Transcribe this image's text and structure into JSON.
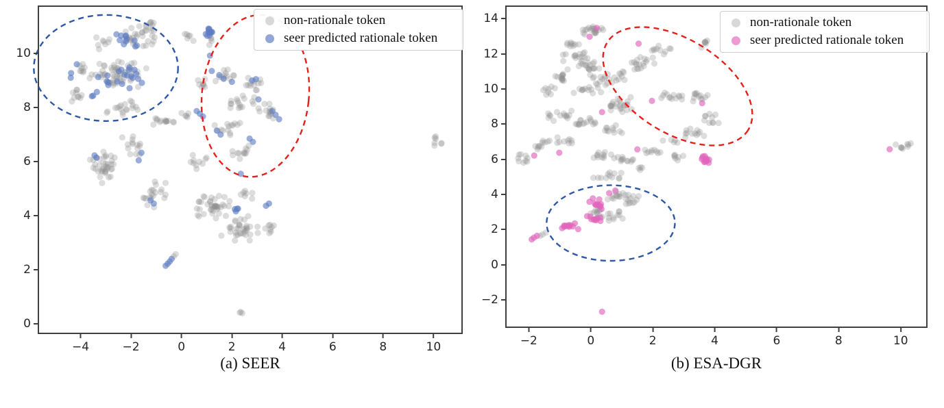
{
  "figure_colors": {
    "spine": "#3f3f3f",
    "tick_label": "#262626",
    "background": "#ffffff"
  },
  "chart_data": [
    {
      "type": "scatter",
      "caption": "(a) SEER",
      "xlim": [
        -5.7,
        11.05
      ],
      "ylim": [
        -0.27,
        11.77
      ],
      "xticks": [
        -4,
        -2,
        0,
        2,
        4,
        6,
        8,
        10
      ],
      "yticks": [
        0,
        2,
        4,
        6,
        8,
        10
      ],
      "grid": false,
      "legend_position": "upper right",
      "series": [
        {
          "name": "non-rationale token",
          "color": "#909090",
          "opacity": 0.3,
          "legend_color": "#d8d8d8"
        },
        {
          "name": "seer predicted rationale token",
          "color": "#5e7dc2",
          "opacity": 0.62,
          "legend_color": "#93a7d6"
        }
      ],
      "ellipses": [
        {
          "name": "blue-cluster-ellipse",
          "cx": -3.05,
          "cy": 9.51,
          "rx": 2.86,
          "ry": 1.96,
          "angle": 0,
          "color": "#2d57a8"
        },
        {
          "name": "red-cluster-ellipse",
          "cx": 2.88,
          "cy": 8.48,
          "rx": 2.12,
          "ry": 3.0,
          "angle": 6,
          "color": "#e3211a"
        }
      ],
      "clusters_format": [
        "series",
        "cx",
        "cy",
        "sx",
        "sy",
        "n"
      ],
      "clusters": [
        [
          0,
          -1.85,
          10.7,
          0.85,
          0.45,
          28
        ],
        [
          0,
          -1.3,
          11.05,
          0.25,
          0.2,
          8
        ],
        [
          0,
          -3.2,
          10.45,
          0.45,
          0.3,
          8
        ],
        [
          0,
          -2.6,
          9.3,
          1.25,
          0.55,
          55
        ],
        [
          0,
          -3.95,
          9.45,
          0.3,
          0.25,
          8
        ],
        [
          0,
          -4.3,
          8.5,
          0.35,
          0.35,
          10
        ],
        [
          0,
          -2.4,
          8.0,
          0.95,
          0.35,
          18
        ],
        [
          0,
          -0.7,
          7.5,
          0.55,
          0.25,
          14
        ],
        [
          0,
          0.1,
          7.75,
          0.2,
          0.15,
          5
        ],
        [
          0,
          -2.0,
          6.7,
          0.5,
          0.55,
          14
        ],
        [
          0,
          -3.15,
          5.9,
          0.55,
          0.8,
          38
        ],
        [
          0,
          -1.15,
          4.85,
          0.6,
          0.6,
          20
        ],
        [
          0,
          0.55,
          6.0,
          0.5,
          0.4,
          10
        ],
        [
          0,
          1.2,
          4.4,
          0.75,
          0.6,
          40
        ],
        [
          0,
          2.3,
          3.6,
          0.8,
          0.5,
          35
        ],
        [
          0,
          3.5,
          3.6,
          0.3,
          0.25,
          8
        ],
        [
          0,
          2.55,
          4.85,
          0.3,
          0.2,
          7
        ],
        [
          0,
          1.7,
          9.25,
          0.45,
          0.35,
          12
        ],
        [
          0,
          2.85,
          8.9,
          0.45,
          0.3,
          12
        ],
        [
          0,
          2.3,
          8.3,
          0.7,
          0.4,
          16
        ],
        [
          0,
          3.3,
          7.9,
          0.45,
          0.4,
          14
        ],
        [
          0,
          1.8,
          7.3,
          0.6,
          0.4,
          14
        ],
        [
          0,
          2.4,
          6.3,
          0.5,
          0.4,
          12
        ],
        [
          0,
          1.15,
          10.6,
          0.2,
          0.3,
          5
        ],
        [
          0,
          0.25,
          10.7,
          0.3,
          0.35,
          6
        ],
        [
          0,
          10.05,
          6.85,
          0.25,
          0.22,
          7
        ],
        [
          0,
          0.8,
          8.9,
          0.3,
          0.4,
          8
        ],
        [
          1,
          -2.3,
          10.55,
          0.75,
          0.4,
          11
        ],
        [
          1,
          -2.5,
          9.2,
          1.05,
          0.5,
          20
        ],
        [
          1,
          -4.3,
          9.4,
          0.25,
          0.3,
          3
        ],
        [
          1,
          -3.6,
          8.55,
          0.3,
          0.25,
          3
        ],
        [
          1,
          1.05,
          10.8,
          0.22,
          0.22,
          12
        ],
        [
          1,
          2.1,
          4.3,
          0.22,
          0.18,
          4
        ]
      ],
      "points_format": [
        "series",
        "x",
        "y"
      ],
      "points": [
        [
          0,
          2.3,
          0.5
        ],
        [
          0,
          2.36,
          0.45
        ],
        [
          0,
          2.26,
          0.47
        ],
        [
          0,
          -0.36,
          2.55
        ],
        [
          0,
          -0.28,
          2.63
        ],
        [
          1,
          -0.68,
          2.2
        ],
        [
          1,
          -0.6,
          2.28
        ],
        [
          1,
          -0.52,
          2.36
        ],
        [
          1,
          -0.44,
          2.46
        ],
        [
          1,
          1.08,
          9.97
        ],
        [
          1,
          1.15,
          9.4
        ],
        [
          1,
          -1.64,
          6.38
        ],
        [
          1,
          -1.75,
          6.1
        ],
        [
          1,
          -3.5,
          6.28
        ],
        [
          1,
          -3.42,
          6.2
        ],
        [
          1,
          -1.28,
          4.62
        ],
        [
          1,
          -1.15,
          4.5
        ],
        [
          1,
          3.3,
          4.42
        ],
        [
          1,
          3.42,
          4.5
        ],
        [
          1,
          1.45,
          9.25
        ],
        [
          1,
          1.62,
          9.12
        ],
        [
          1,
          1.95,
          9.0
        ],
        [
          1,
          2.75,
          9.05
        ],
        [
          1,
          2.9,
          9.1
        ],
        [
          1,
          3.0,
          8.35
        ],
        [
          1,
          3.55,
          7.92
        ],
        [
          1,
          3.68,
          7.78
        ],
        [
          1,
          3.82,
          7.62
        ],
        [
          1,
          0.55,
          7.92
        ],
        [
          1,
          0.68,
          7.82
        ],
        [
          1,
          0.8,
          7.72
        ],
        [
          1,
          1.35,
          7.2
        ],
        [
          1,
          1.5,
          7.05
        ],
        [
          1,
          2.65,
          6.9
        ],
        [
          1,
          2.78,
          6.78
        ],
        [
          1,
          2.3,
          5.6
        ]
      ]
    },
    {
      "type": "scatter",
      "caption": "(b) ESA-DGR",
      "xlim": [
        -2.76,
        10.78
      ],
      "ylim": [
        -3.44,
        14.75
      ],
      "xticks": [
        -2,
        0,
        2,
        4,
        6,
        8,
        10
      ],
      "yticks": [
        -2,
        0,
        2,
        4,
        6,
        8,
        10,
        12,
        14
      ],
      "grid": false,
      "legend_position": "upper right",
      "series": [
        {
          "name": "non-rationale token",
          "color": "#909090",
          "opacity": 0.3,
          "legend_color": "#d8d8d8"
        },
        {
          "name": "seer predicted rationale token",
          "color": "#e066bb",
          "opacity": 0.65,
          "legend_color": "#ee9ad3"
        }
      ],
      "ellipses": [
        {
          "name": "red-cluster-ellipse",
          "cx": 2.76,
          "cy": 10.23,
          "rx": 2.68,
          "ry": 2.66,
          "angle": 32,
          "color": "#e3211a"
        },
        {
          "name": "blue-cluster-ellipse",
          "cx": 0.6,
          "cy": 2.45,
          "rx": 2.07,
          "ry": 2.15,
          "angle": 0,
          "color": "#2d57a8"
        }
      ],
      "clusters_format": [
        "series",
        "cx",
        "cy",
        "sx",
        "sy",
        "n"
      ],
      "clusters": [
        [
          0,
          0.0,
          13.4,
          0.55,
          0.35,
          20
        ],
        [
          0,
          -0.6,
          12.7,
          0.3,
          0.25,
          9
        ],
        [
          0,
          2.2,
          12.3,
          0.5,
          0.3,
          10
        ],
        [
          0,
          3.6,
          12.65,
          0.2,
          0.3,
          7
        ],
        [
          0,
          -0.55,
          11.95,
          0.5,
          0.3,
          14
        ],
        [
          0,
          -0.1,
          11.4,
          0.55,
          0.4,
          18
        ],
        [
          0,
          -1.05,
          10.8,
          0.35,
          0.5,
          14
        ],
        [
          0,
          0.35,
          10.65,
          0.5,
          0.4,
          16
        ],
        [
          0,
          -0.2,
          10.05,
          0.55,
          0.3,
          12
        ],
        [
          0,
          1.6,
          11.5,
          0.55,
          0.5,
          18
        ],
        [
          0,
          0.95,
          10.8,
          0.3,
          0.35,
          8
        ],
        [
          0,
          0.85,
          9.2,
          0.5,
          0.5,
          24
        ],
        [
          0,
          2.6,
          9.6,
          0.5,
          0.35,
          13
        ],
        [
          0,
          3.5,
          9.65,
          0.4,
          0.3,
          12
        ],
        [
          0,
          3.85,
          8.4,
          0.25,
          0.45,
          10
        ],
        [
          0,
          3.3,
          7.6,
          0.4,
          0.3,
          12
        ],
        [
          0,
          2.5,
          7.15,
          0.3,
          0.2,
          5
        ],
        [
          0,
          -1.35,
          9.95,
          0.3,
          0.3,
          8
        ],
        [
          0,
          -1.1,
          8.5,
          0.5,
          0.35,
          14
        ],
        [
          0,
          -0.25,
          8.2,
          0.55,
          0.4,
          16
        ],
        [
          0,
          0.55,
          7.8,
          0.45,
          0.3,
          11
        ],
        [
          0,
          -1.7,
          6.9,
          0.4,
          0.3,
          11
        ],
        [
          0,
          -2.3,
          6.15,
          0.3,
          0.3,
          9
        ],
        [
          0,
          -0.9,
          7.1,
          0.4,
          0.25,
          9
        ],
        [
          0,
          0.2,
          6.3,
          0.5,
          0.3,
          11
        ],
        [
          0,
          1.05,
          6.05,
          0.5,
          0.3,
          12
        ],
        [
          0,
          1.95,
          6.5,
          0.4,
          0.25,
          9
        ],
        [
          0,
          2.7,
          6.2,
          0.35,
          0.25,
          7
        ],
        [
          0,
          0.5,
          5.1,
          0.6,
          0.35,
          12
        ],
        [
          0,
          0.85,
          4.0,
          0.4,
          0.3,
          14
        ],
        [
          0,
          1.3,
          3.75,
          0.3,
          0.25,
          10
        ],
        [
          0,
          0.6,
          2.85,
          0.5,
          0.35,
          14
        ],
        [
          0,
          0.15,
          3.1,
          0.3,
          0.25,
          8
        ],
        [
          0,
          9.95,
          6.8,
          0.3,
          0.18,
          7
        ],
        [
          0,
          1.5,
          5.6,
          0.2,
          0.15,
          4
        ],
        [
          1,
          3.62,
          6.05,
          0.22,
          0.3,
          13
        ],
        [
          1,
          0.2,
          3.5,
          0.4,
          0.45,
          12
        ],
        [
          1,
          -0.65,
          2.25,
          0.35,
          0.2,
          12
        ],
        [
          1,
          0.0,
          2.75,
          0.35,
          0.25,
          10
        ]
      ],
      "points_format": [
        "series",
        "x",
        "y"
      ],
      "points": [
        [
          0,
          -1.6,
          1.8
        ],
        [
          0,
          -1.5,
          1.9
        ],
        [
          0,
          -1.68,
          1.72
        ],
        [
          0,
          10.28,
          6.98
        ],
        [
          0,
          10.2,
          6.9
        ],
        [
          1,
          0.15,
          13.55
        ],
        [
          1,
          -0.08,
          13.05
        ],
        [
          1,
          1.5,
          12.66
        ],
        [
          1,
          0.32,
          8.76
        ],
        [
          1,
          1.93,
          9.4
        ],
        [
          1,
          3.55,
          9.27
        ],
        [
          1,
          -1.87,
          6.29
        ],
        [
          1,
          -1.06,
          6.45
        ],
        [
          1,
          1.46,
          6.64
        ],
        [
          1,
          9.6,
          6.65
        ],
        [
          1,
          0.32,
          -2.6
        ],
        [
          1,
          -1.88,
          1.62
        ],
        [
          1,
          -1.78,
          1.72
        ],
        [
          1,
          -1.95,
          1.52
        ],
        [
          1,
          0.75,
          4.3
        ],
        [
          1,
          0.55,
          4.15
        ]
      ]
    }
  ]
}
